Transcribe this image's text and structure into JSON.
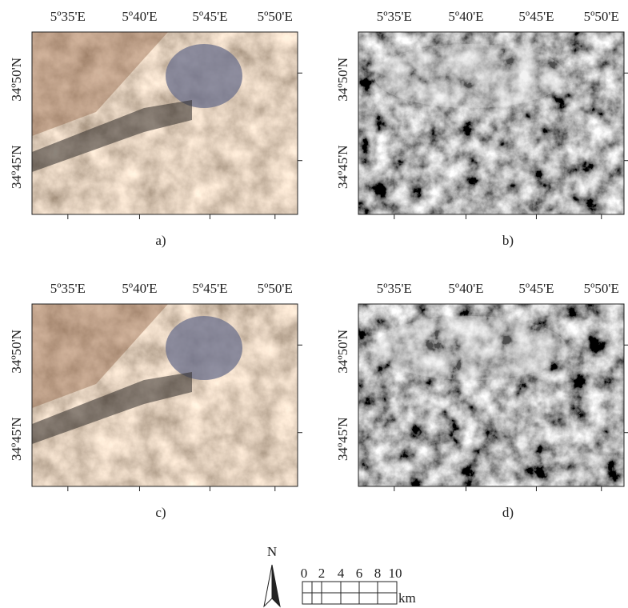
{
  "panels": [
    {
      "caption": "a)",
      "x_labels": [
        "5º35'E",
        "5º40'E",
        "5º45'E",
        "5º50'E"
      ],
      "y_labels": [
        "34º50'N",
        "34º45'N"
      ],
      "style": "color"
    },
    {
      "caption": "b)",
      "x_labels": [
        "5º35'E",
        "5º40'E",
        "5º45'E",
        "5º50'E"
      ],
      "y_labels": [
        "34º50'N",
        "34º45'N"
      ],
      "style": "gray"
    },
    {
      "caption": "c)",
      "x_labels": [
        "5º35'E",
        "5º40'E",
        "5º45'E",
        "5º50'E"
      ],
      "y_labels": [
        "34º50'N",
        "34º45'N"
      ],
      "style": "color"
    },
    {
      "caption": "d)",
      "x_labels": [
        "5º35'E",
        "5º40'E",
        "5º45'E",
        "5º50'E"
      ],
      "y_labels": [
        "34º50'N",
        "34º45'N"
      ],
      "style": "gray"
    }
  ],
  "north_label": "N",
  "scale_bar": {
    "labels": [
      "0",
      "2",
      "4",
      "6",
      "8",
      "10"
    ],
    "unit": "km"
  }
}
